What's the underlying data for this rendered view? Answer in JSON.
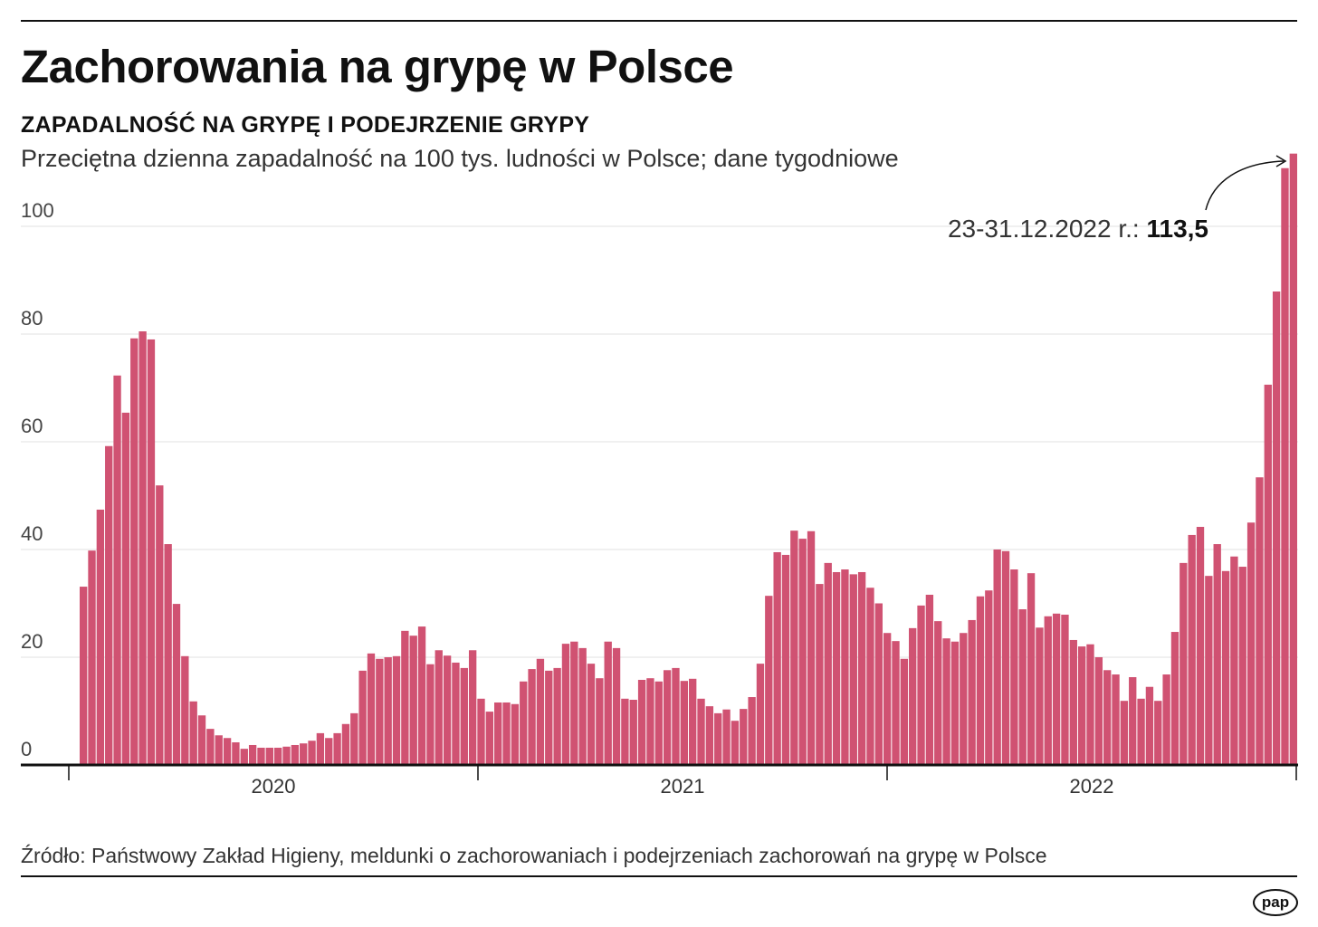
{
  "title": "Zachorowania na grypę w Polsce",
  "subtitle": "ZAPADALNOŚĆ NA GRYPĘ I PODEJRZENIE GRYPY",
  "description": "Przeciętna dzienna zapadalność na 100 tys. ludności w Polsce; dane tygodniowe",
  "source": "Źródło: Państwowy Zakład Higieny, meldunki o zachorowaniach i podejrzeniach zachorowań na grypę w Polsce",
  "logo": "pap",
  "chart_data": {
    "type": "bar",
    "bar_color": "#d05272",
    "ylim": [
      0,
      115
    ],
    "yticks": [
      0,
      20,
      40,
      60,
      80,
      100
    ],
    "xticks": [
      "2020",
      "2021",
      "2022"
    ],
    "grid": true,
    "annotation": {
      "label": "23-31.12.2022 r.: ",
      "value": "113,5"
    },
    "values": [
      33.1,
      39.8,
      47.4,
      59.2,
      72.3,
      65.4,
      79.2,
      80.5,
      79,
      51.9,
      41,
      29.9,
      20.2,
      11.8,
      9.2,
      6.7,
      5.5,
      5,
      4.2,
      3,
      3.7,
      3.2,
      3.2,
      3.2,
      3.4,
      3.7,
      4,
      4.5,
      5.9,
      5,
      5.9,
      7.6,
      9.6,
      17.5,
      20.7,
      19.7,
      20,
      20.2,
      24.9,
      24,
      25.7,
      18.7,
      21.3,
      20.3,
      19,
      18,
      21.3,
      12.3,
      9.9,
      11.6,
      11.6,
      11.3,
      15.5,
      17.8,
      19.7,
      17.5,
      18,
      22.5,
      22.9,
      21.7,
      18.8,
      16.1,
      22.9,
      21.7,
      12.3,
      12.1,
      15.8,
      16.1,
      15.5,
      17.6,
      18,
      15.6,
      16,
      12.3,
      10.9,
      9.6,
      10.3,
      8.2,
      10.4,
      12.6,
      18.8,
      31.4,
      39.5,
      39,
      43.5,
      42,
      43.4,
      33.6,
      37.5,
      35.8,
      36.3,
      35.4,
      35.8,
      32.9,
      30,
      24.5,
      23,
      19.7,
      25.4,
      29.6,
      31.6,
      26.7,
      23.5,
      22.9,
      24.5,
      26.9,
      31.3,
      32.4,
      40,
      39.7,
      36.3,
      28.9,
      35.6,
      25.5,
      27.6,
      28.1,
      27.9,
      23.2,
      22,
      22.4,
      20,
      17.6,
      16.8,
      11.9,
      16.3,
      12.3,
      14.5,
      11.9,
      16.8,
      24.7,
      37.5,
      42.7,
      44.2,
      35.1,
      41,
      36,
      38.7,
      36.8,
      45,
      53.4,
      70.6,
      87.9,
      110.8,
      113.5
    ]
  }
}
